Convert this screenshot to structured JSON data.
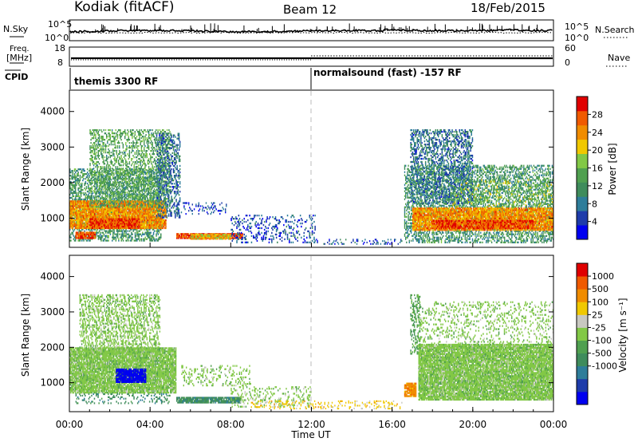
{
  "header": {
    "station": "Kodiak (fitACF)",
    "beam": "Beam 12",
    "date": "18/Feb/2015"
  },
  "top_panels": {
    "nsky_label": "N.Sky",
    "nsky_ticks": [
      "10^5",
      "10^0"
    ],
    "nsearch_label": "N.Search",
    "nsearch_ticks": [
      "10^5",
      "10^0"
    ],
    "freq_label_line1": "Freq.",
    "freq_label_line2": "[MHz]",
    "freq_ticks": [
      "18",
      "8"
    ],
    "nave_label": "Nave",
    "nave_ticks": [
      "60",
      "0"
    ],
    "cpid_label": "CPID",
    "cpid_mode1": "themis 3300 RF",
    "cpid_mode2": "normalsound (fast) -157 RF"
  },
  "colors": {
    "power": [
      "#0000f0",
      "#1e3caa",
      "#2e7d9a",
      "#3f8c5c",
      "#50a050",
      "#82c846",
      "#f0c800",
      "#f08c00",
      "#f05a00",
      "#e00000"
    ],
    "velocity": [
      "#0000f0",
      "#1e3caa",
      "#2e7d9a",
      "#3f8c5c",
      "#50a050",
      "#82c846",
      "#c8c8c0",
      "#f0c800",
      "#f08c00",
      "#f05a00",
      "#e00000"
    ],
    "ground_scatter": "#c8c8c0"
  },
  "chart_data": [
    {
      "type": "heatmap",
      "name": "power-panel",
      "ylabel": "Slant Range [km]",
      "yticks": [
        "4000",
        "3000",
        "2000",
        "1000"
      ],
      "ylim": [
        180,
        4600
      ],
      "colorbar": {
        "label": "Power [dB]",
        "ticks": [
          "28",
          "24",
          "20",
          "16",
          "12",
          "8",
          "4"
        ],
        "range": [
          0,
          32
        ]
      },
      "patches": [
        {
          "t0": 0.0,
          "t1": 4.6,
          "r0": 350,
          "r1": 2400,
          "kind": "bg",
          "level": 12
        },
        {
          "t0": 0.0,
          "t1": 4.8,
          "r0": 700,
          "r1": 1500,
          "kind": "band",
          "level": 24
        },
        {
          "t0": 1.0,
          "t1": 3.5,
          "r0": 700,
          "r1": 1000,
          "kind": "band",
          "level": 28
        },
        {
          "t0": 0.3,
          "t1": 1.3,
          "r0": 420,
          "r1": 620,
          "kind": "band",
          "level": 28
        },
        {
          "t0": 1.0,
          "t1": 5.0,
          "r0": 1300,
          "r1": 3500,
          "kind": "streaks",
          "level": 14
        },
        {
          "t0": 4.3,
          "t1": 5.5,
          "r0": 1000,
          "r1": 3400,
          "kind": "streaks",
          "level": 8
        },
        {
          "t0": 5.3,
          "t1": 8.6,
          "r0": 420,
          "r1": 580,
          "kind": "band",
          "level": 28
        },
        {
          "t0": 6.0,
          "t1": 8.0,
          "r0": 400,
          "r1": 560,
          "kind": "band",
          "level": 22
        },
        {
          "t0": 5.3,
          "t1": 7.8,
          "r0": 1100,
          "r1": 1450,
          "kind": "speckle",
          "level": 5
        },
        {
          "t0": 8.0,
          "t1": 12.2,
          "r0": 300,
          "r1": 1100,
          "kind": "speckle",
          "level": 6
        },
        {
          "t0": 12.0,
          "t1": 16.5,
          "r0": 260,
          "r1": 420,
          "kind": "speckle",
          "level": 6
        },
        {
          "t0": 16.6,
          "t1": 24.0,
          "r0": 300,
          "r1": 2500,
          "kind": "bg",
          "level": 12
        },
        {
          "t0": 17.0,
          "t1": 24.0,
          "r0": 650,
          "r1": 1300,
          "kind": "band",
          "level": 24
        },
        {
          "t0": 18.0,
          "t1": 23.0,
          "r0": 700,
          "r1": 950,
          "kind": "band",
          "level": 28
        },
        {
          "t0": 16.9,
          "t1": 20.0,
          "r0": 1400,
          "r1": 3500,
          "kind": "streaks",
          "level": 8
        },
        {
          "t0": 19.0,
          "t1": 24.0,
          "r0": 1300,
          "r1": 2100,
          "kind": "speckle",
          "level": 16
        }
      ]
    },
    {
      "type": "heatmap",
      "name": "velocity-panel",
      "xlabel": "Time UT",
      "xticks": [
        "00:00",
        "04:00",
        "08:00",
        "12:00",
        "16:00",
        "20:00",
        "00:00"
      ],
      "xlim": [
        0,
        24
      ],
      "ylabel": "Slant Range [km]",
      "yticks": [
        "4000",
        "3000",
        "2000",
        "1000"
      ],
      "ylim": [
        180,
        4600
      ],
      "colorbar": {
        "label": "Velocity [m s⁻¹]",
        "ticks": [
          "1000",
          "500",
          "100",
          "25",
          "-25",
          "-100",
          "-500",
          "-1000"
        ]
      },
      "patches": [
        {
          "t0": 0.0,
          "t1": 5.3,
          "r0": 700,
          "r1": 2000,
          "kind": "band",
          "level": 5
        },
        {
          "t0": 0.5,
          "t1": 4.5,
          "r0": 1800,
          "r1": 3500,
          "kind": "streaks",
          "level": 5
        },
        {
          "t0": 2.3,
          "t1": 3.8,
          "r0": 1000,
          "r1": 1400,
          "kind": "band",
          "level": 0
        },
        {
          "t0": 0.3,
          "t1": 5.0,
          "r0": 400,
          "r1": 700,
          "kind": "speckle",
          "level": 3
        },
        {
          "t0": 5.3,
          "t1": 8.5,
          "r0": 420,
          "r1": 600,
          "kind": "band",
          "level": 3
        },
        {
          "t0": 5.5,
          "t1": 9.0,
          "r0": 900,
          "r1": 1500,
          "kind": "speckle",
          "level": 5
        },
        {
          "t0": 8.0,
          "t1": 12.0,
          "r0": 300,
          "r1": 900,
          "kind": "speckle",
          "level": 5
        },
        {
          "t0": 9.0,
          "t1": 16.5,
          "r0": 250,
          "r1": 500,
          "kind": "speckle",
          "level": 7
        },
        {
          "t0": 16.6,
          "t1": 17.2,
          "r0": 600,
          "r1": 1000,
          "kind": "band",
          "level": 8
        },
        {
          "t0": 16.9,
          "t1": 17.4,
          "r0": 1800,
          "r1": 3500,
          "kind": "streaks",
          "level": 4
        },
        {
          "t0": 17.3,
          "t1": 24.0,
          "r0": 500,
          "r1": 2100,
          "kind": "band",
          "level": 5
        },
        {
          "t0": 17.3,
          "t1": 24.0,
          "r0": 2000,
          "r1": 3300,
          "kind": "speckle",
          "level": 5
        }
      ]
    }
  ]
}
